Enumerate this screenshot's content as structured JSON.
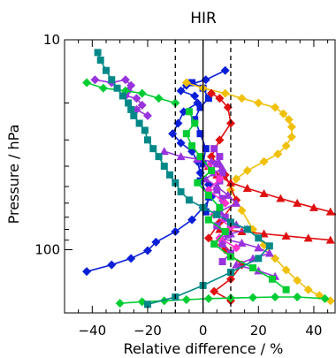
{
  "chart_data": {
    "type": "line",
    "title": "HIR",
    "xlabel": "Relative difference / %",
    "ylabel": "Pressure / hPa",
    "xlim": [
      -50,
      48
    ],
    "ylim": [
      200,
      10
    ],
    "yscale": "log",
    "x_ticks": [
      -40,
      -20,
      0,
      20,
      40
    ],
    "y_ticks": [
      10,
      100
    ],
    "y_tick_labels": [
      "10",
      "100"
    ],
    "reference_lines": [
      {
        "x": -10,
        "style": "dashed"
      },
      {
        "x": 0,
        "style": "solid"
      },
      {
        "x": 10,
        "style": "dashed"
      }
    ],
    "series": [
      {
        "color": "#0a1fd6",
        "marker": "diamond",
        "x": [
          8,
          1,
          -6,
          -8,
          -3,
          -2,
          -7,
          -9,
          -11,
          -8,
          -4,
          -2,
          -1,
          2,
          3,
          0,
          -4,
          -10,
          -17,
          -20,
          -26,
          -33,
          -42
        ],
        "y": [
          14,
          15.5,
          16.5,
          17.5,
          18.5,
          20,
          22,
          25,
          28,
          31,
          34,
          38,
          43,
          49,
          56,
          63,
          72,
          82,
          92,
          101,
          110,
          118,
          127
        ]
      },
      {
        "color": "#0a1fd6",
        "marker": "square",
        "x": [
          -4,
          0,
          2,
          -1,
          -3,
          -1,
          1,
          0,
          -1,
          2,
          1
        ],
        "y": [
          16,
          17,
          19,
          21,
          24,
          28,
          33,
          39,
          47,
          56,
          66
        ]
      },
      {
        "color": "#f0c00a",
        "marker": "diamond",
        "x": [
          -6,
          0,
          8,
          14,
          20,
          26,
          29,
          31,
          32,
          32,
          30,
          27,
          22,
          16,
          12,
          10,
          14,
          18,
          22,
          26,
          30,
          34,
          38,
          42,
          46
        ],
        "y": [
          16,
          17,
          18,
          19,
          20,
          21,
          22.5,
          24,
          26,
          29,
          32,
          35,
          38,
          42,
          46,
          52,
          65,
          80,
          95,
          110,
          125,
          140,
          155,
          165,
          175
        ]
      },
      {
        "color": "#e01010",
        "marker": "triangle",
        "x": [
          2,
          5,
          10,
          16,
          22,
          28,
          34,
          40,
          46,
          50
        ],
        "y": [
          40,
          44,
          48,
          51,
          54,
          57,
          60,
          63,
          66,
          70
        ]
      },
      {
        "color": "#e01010",
        "marker": "triangle",
        "x": [
          6,
          14,
          22,
          30,
          38,
          46
        ],
        "y": [
          80,
          82,
          84,
          86,
          88,
          90
        ]
      },
      {
        "color": "#e01010",
        "marker": "diamond",
        "x": [
          3,
          6,
          9,
          10,
          6,
          3,
          8,
          12,
          6,
          2,
          8,
          14,
          10,
          4,
          10
        ],
        "y": [
          18,
          19,
          21,
          25,
          30,
          36,
          44,
          58,
          74,
          88,
          100,
          118,
          138,
          158,
          175
        ]
      },
      {
        "color": "#9933dd",
        "marker": "diamond",
        "x": [
          -39,
          -33,
          -28,
          -26,
          -27,
          -28,
          -24,
          -22,
          -24,
          -20
        ],
        "y": [
          15.5,
          16,
          15.5,
          16.5,
          17.5,
          18.5,
          19,
          20.5,
          21.5,
          23
        ]
      },
      {
        "color": "#9933dd",
        "marker": "triangle",
        "x": [
          -14,
          -8,
          -2,
          3,
          6,
          7,
          4,
          1,
          5,
          9,
          12,
          6,
          8,
          12,
          16,
          10,
          6,
          14,
          20,
          24,
          18,
          12,
          20,
          26
        ],
        "y": [
          34,
          36,
          37,
          38,
          39,
          41,
          43,
          46,
          50,
          55,
          60,
          66,
          71,
          76,
          80,
          84,
          88,
          93,
          98,
          104,
          110,
          118,
          126,
          134
        ]
      },
      {
        "color": "#9933dd",
        "marker": "square",
        "x": [
          4,
          6,
          5,
          7,
          6,
          5,
          7,
          6,
          8,
          5,
          9,
          7,
          10,
          7
        ],
        "y": [
          33,
          36,
          39,
          43,
          47,
          52,
          57,
          63,
          70,
          77,
          85,
          94,
          104,
          114
        ]
      },
      {
        "color": "#ff33cc",
        "marker": "diamond",
        "x": [
          2,
          6,
          2,
          8,
          4,
          10,
          6,
          12
        ],
        "y": [
          40,
          46,
          52,
          60,
          68,
          78,
          88,
          98
        ]
      },
      {
        "color": "#00cc33",
        "marker": "diamond",
        "x": [
          -42,
          -36,
          -28,
          -22,
          -16,
          -10
        ],
        "y": [
          16,
          17,
          17.5,
          18,
          19,
          20
        ]
      },
      {
        "color": "#00cc33",
        "marker": "diamond",
        "x": [
          -30,
          -22,
          -14,
          -6,
          2,
          10,
          18,
          26,
          34,
          44
        ],
        "y": [
          180,
          177,
          175,
          173,
          171,
          170,
          169,
          168,
          168,
          171
        ]
      },
      {
        "color": "#00cc33",
        "marker": "square",
        "x": [
          -5,
          -3,
          -6,
          -4,
          -1,
          3,
          -2,
          2,
          6,
          2,
          8,
          4,
          10,
          18,
          25,
          30
        ],
        "y": [
          22,
          25,
          28,
          32,
          36,
          42,
          48,
          55,
          63,
          72,
          82,
          94,
          108,
          122,
          138,
          155
        ]
      },
      {
        "color": "#008888",
        "marker": "square",
        "x": [
          -38,
          -37,
          -35,
          -33,
          -31,
          -29,
          -27,
          -26,
          -25,
          -23,
          -21,
          -20,
          -18,
          -16,
          -14,
          -12,
          -10,
          -8,
          -5,
          0,
          5,
          10,
          16,
          20,
          24,
          20,
          10,
          0,
          -10,
          -20
        ],
        "y": [
          11.5,
          12.5,
          14,
          15.5,
          17,
          18.5,
          20,
          21.5,
          23,
          25,
          27,
          30,
          33,
          36,
          40,
          44,
          48,
          53,
          58,
          63,
          68,
          74,
          80,
          88,
          96,
          110,
          128,
          148,
          168,
          182
        ]
      }
    ]
  }
}
